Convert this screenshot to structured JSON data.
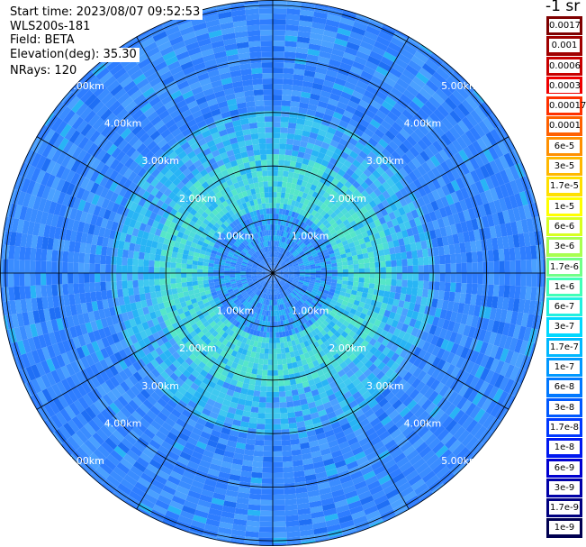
{
  "header": {
    "start_time": "Start time: 2023/08/07 09:52:53",
    "instrument": "WLS200s-181",
    "field": "Field: BETA",
    "elevation": "Elevation(deg): 35.30",
    "nrays": "NRays: 120"
  },
  "colorbar": {
    "unit_label": "-1 sr",
    "ticks": [
      "0.0017",
      "0.001",
      "0.0006",
      "0.0003",
      "0.00017",
      "0.0001",
      "6e-5",
      "3e-5",
      "1.7e-5",
      "1e-5",
      "6e-6",
      "3e-6",
      "1.7e-6",
      "1e-6",
      "6e-7",
      "3e-7",
      "1.7e-7",
      "1e-7",
      "6e-8",
      "3e-8",
      "1.7e-8",
      "1e-8",
      "6e-9",
      "3e-9",
      "1.7e-9",
      "1e-9"
    ],
    "colors": [
      "#7f0000",
      "#a00000",
      "#c80000",
      "#f00000",
      "#ff3000",
      "#ff6000",
      "#ff9000",
      "#ffb800",
      "#ffe000",
      "#ffff00",
      "#d8ff20",
      "#a8ff50",
      "#70ff88",
      "#40ffb8",
      "#20f0e0",
      "#00d8ff",
      "#00b8ff",
      "#0098ff",
      "#0078ff",
      "#0058ff",
      "#0038ff",
      "#0018f0",
      "#0000d0",
      "#0000a8",
      "#000080",
      "#000050"
    ]
  },
  "ppi": {
    "range_rings_km": [
      1,
      2,
      3,
      4,
      5
    ],
    "max_range_km": 5.1,
    "ring_labels": [
      "1.00km",
      "2.00km",
      "3.00km",
      "4.00km",
      "5.00km"
    ],
    "spoke_count": 12,
    "spoke_offset_deg": 0,
    "data_colors": [
      "#3a8cff",
      "#2e7dff",
      "#4aa0ff",
      "#28b4f5",
      "#3fc8f0",
      "#4ddcd8",
      "#1f6ff5",
      "#55e6c8"
    ]
  }
}
